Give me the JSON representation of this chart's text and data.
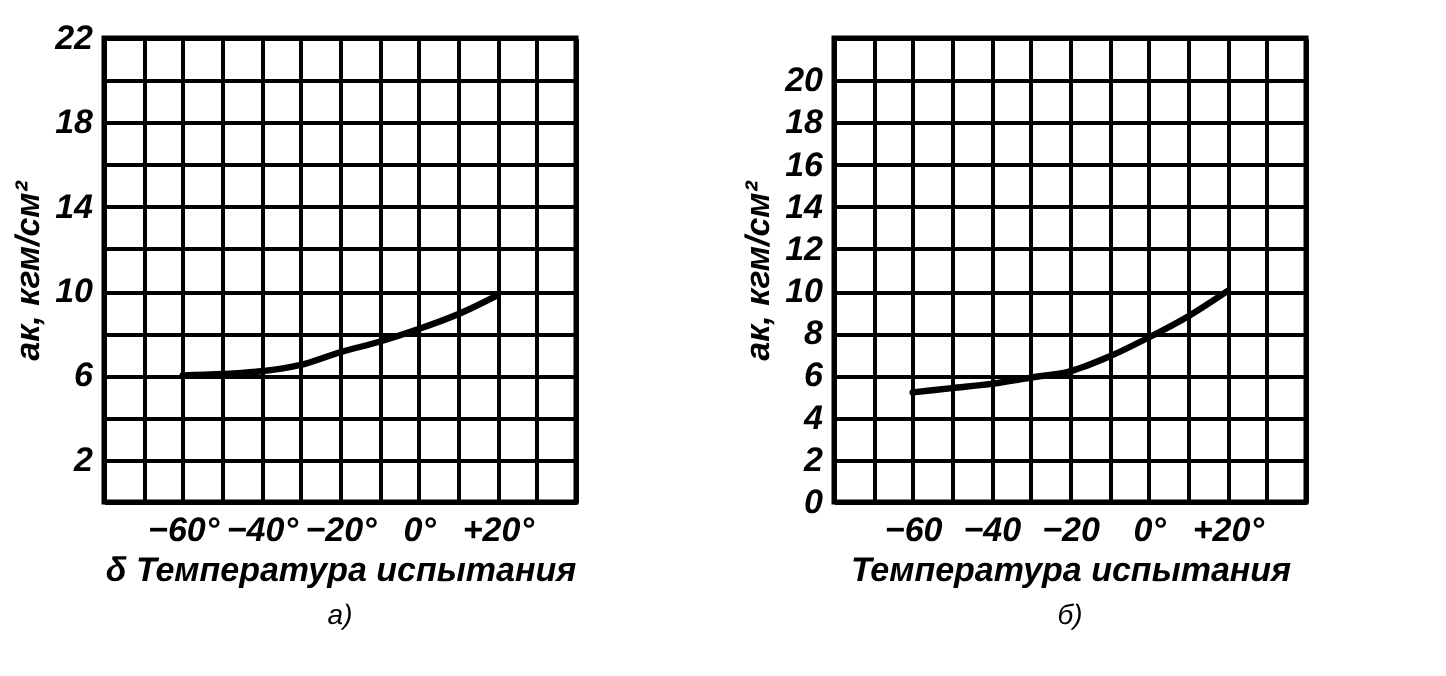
{
  "chart_data": [
    {
      "type": "line",
      "xlabel": "δ Температура испытания",
      "ylabel": "aк, кгм/см²",
      "annotations": [
        "а)"
      ],
      "x": [
        -60,
        -40,
        -30,
        -20,
        -10,
        0,
        10,
        20
      ],
      "series": [
        {
          "color": "#000000",
          "values": [
            6.0,
            6.2,
            6.5,
            7.1,
            7.6,
            8.2,
            8.9,
            9.8
          ]
        }
      ],
      "xlim": [
        -80,
        40
      ],
      "xticks": [
        {
          "value": -80,
          "label": null
        },
        {
          "value": -70,
          "label": null
        },
        {
          "value": -60,
          "label": "−60°"
        },
        {
          "value": -50,
          "label": null
        },
        {
          "value": -40,
          "label": "−40°"
        },
        {
          "value": -30,
          "label": null
        },
        {
          "value": -20,
          "label": "−20°"
        },
        {
          "value": -10,
          "label": null
        },
        {
          "value": 0,
          "label": "0°"
        },
        {
          "value": 10,
          "label": null
        },
        {
          "value": 20,
          "label": "+20°"
        },
        {
          "value": 30,
          "label": null
        },
        {
          "value": 40,
          "label": null
        }
      ],
      "ylim": [
        0,
        22
      ],
      "yticks": [
        {
          "value": 0,
          "label": null
        },
        2,
        {
          "value": 4,
          "label": null
        },
        6,
        {
          "value": 8,
          "label": null
        },
        10,
        {
          "value": 12,
          "label": null
        },
        14,
        {
          "value": 16,
          "label": null
        },
        18,
        {
          "value": 20,
          "label": null
        },
        22
      ],
      "grid": true,
      "marker": "none",
      "line_style": "solid"
    },
    {
      "type": "line",
      "xlabel": "Температура испытания",
      "ylabel": "aк, кгм/см²",
      "annotations": [
        "б)"
      ],
      "x": [
        -60,
        -50,
        -40,
        -30,
        -20,
        -10,
        0,
        10,
        20
      ],
      "series": [
        {
          "color": "#000000",
          "values": [
            5.2,
            5.4,
            5.6,
            5.9,
            6.2,
            6.9,
            7.8,
            8.8,
            10.0
          ]
        }
      ],
      "xlim": [
        -80,
        40
      ],
      "xticks": [
        {
          "value": -80,
          "label": null
        },
        {
          "value": -70,
          "label": null
        },
        {
          "value": -60,
          "label": "−60"
        },
        {
          "value": -50,
          "label": null
        },
        {
          "value": -40,
          "label": "−40"
        },
        {
          "value": -30,
          "label": null
        },
        {
          "value": -20,
          "label": "−20"
        },
        {
          "value": -10,
          "label": null
        },
        {
          "value": 0,
          "label": "0°"
        },
        {
          "value": 10,
          "label": null
        },
        {
          "value": 20,
          "label": "+20°"
        },
        {
          "value": 30,
          "label": null
        },
        {
          "value": 40,
          "label": null
        }
      ],
      "ylim": [
        0,
        22
      ],
      "yticks": [
        0,
        2,
        4,
        6,
        8,
        10,
        12,
        14,
        16,
        18,
        20,
        {
          "value": 22,
          "label": null
        }
      ],
      "grid": true,
      "marker": "none",
      "line_style": "solid"
    }
  ]
}
